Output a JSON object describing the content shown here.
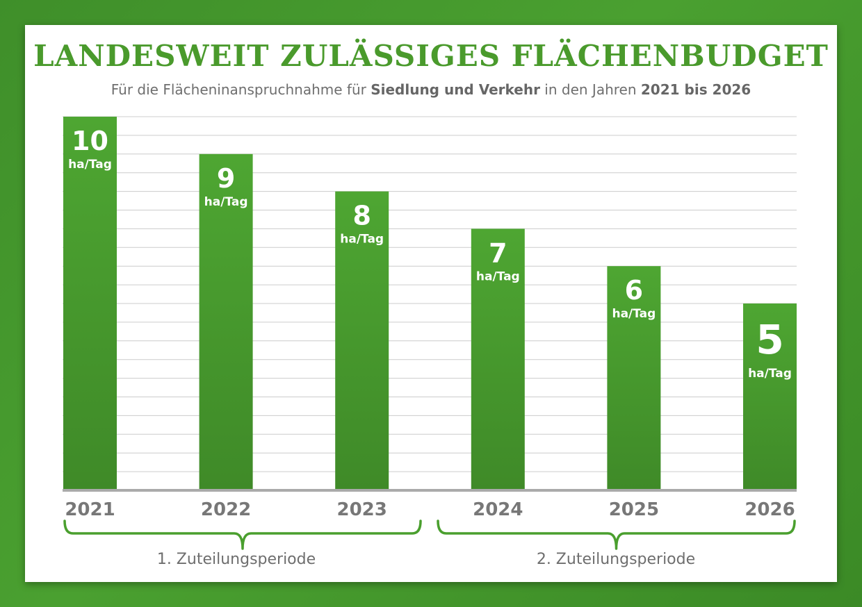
{
  "title": "LANDESWEIT ZULÄSSIGES FLÄCHENBUDGET",
  "subtitle": {
    "part1": "Für die Flächeninanspruchnahme für ",
    "bold1": "Siedlung und Verkehr",
    "part2": " in den Jahren ",
    "bold2": "2021 bis 2026"
  },
  "colors": {
    "bar_green": "#4a9f2e",
    "title_green": "#4a9a2c",
    "grid": "#cccccc",
    "axis": "#aaaaaa",
    "text_grey": "#6e6e6e"
  },
  "periods": [
    {
      "label": "1. Zuteilungsperiode",
      "from": "2021",
      "to": "2023"
    },
    {
      "label": "2. Zuteilungsperiode",
      "from": "2024",
      "to": "2026"
    }
  ],
  "chart_data": {
    "type": "bar",
    "categories": [
      "2021",
      "2022",
      "2023",
      "2024",
      "2025",
      "2026"
    ],
    "values": [
      10,
      9,
      8,
      7,
      6,
      5
    ],
    "unit": "ha/Tag",
    "ylim": [
      0,
      10
    ],
    "grid": true,
    "title": "LANDESWEIT ZULÄSSIGES FLÄCHENBUDGET"
  }
}
